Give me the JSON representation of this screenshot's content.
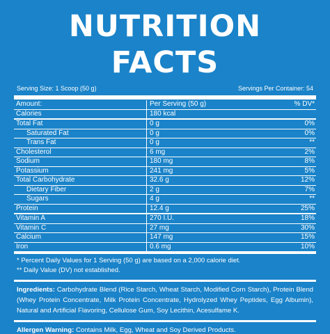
{
  "title": "NUTRITION FACTS",
  "serving_size": "Serving Size: 1 Scoop (50 g)",
  "servings_per_container": "Servings Per Container: 54",
  "header": {
    "name": "Amount:",
    "amount": "Per Serving (50 g)",
    "dv": "% DV*"
  },
  "rows": [
    {
      "name": "Calories",
      "amount": "180 kcal",
      "dv": ""
    },
    {
      "name": "Total Fat",
      "amount": "0 g",
      "dv": "0%"
    },
    {
      "name": "Saturated Fat",
      "amount": "0 g",
      "dv": "0%"
    },
    {
      "name": "Trans Fat",
      "amount": "0 g",
      "dv": "**"
    },
    {
      "name": "Cholesterol",
      "amount": "6 mg",
      "dv": "2%"
    },
    {
      "name": "Sodium",
      "amount": "180 mg",
      "dv": "8%"
    },
    {
      "name": "Potassium",
      "amount": "241 mg",
      "dv": "5%"
    },
    {
      "name": "Total Carbohydrate",
      "amount": "32.6 g",
      "dv": "12%"
    },
    {
      "name": "Dietary Fiber",
      "amount": "2 g",
      "dv": "7%"
    },
    {
      "name": "Sugars",
      "amount": "4 g",
      "dv": "**"
    },
    {
      "name": "Protein",
      "amount": "12.4 g",
      "dv": "25%"
    },
    {
      "name": "Vitamin A",
      "amount": "270 I.U.",
      "dv": "18%"
    },
    {
      "name": "Vitamin C",
      "amount": "27 mg",
      "dv": "30%"
    },
    {
      "name": "Calcium",
      "amount": "147 mg",
      "dv": "15%"
    },
    {
      "name": "Iron",
      "amount": "0.6 mg",
      "dv": "10%"
    }
  ],
  "footnote_1": "* Percent Daily Values for 1 Serving (50 g) are based on a 2,000 calorie diet.",
  "footnote_2": "** Daily Value (DV) not established.",
  "ingredients_label": "Ingredients:",
  "ingredients_text": "Carbohydrate Blend (Rice Starch, Wheat Starch, Modified Corn Starch), Protein Blend (Whey Protein Concentrate, Milk Protein Concentrate, Hydrolyzed Whey Peptides, Egg Albumin), Natural and Artificial Flavoring, Cellulose Gum, Soy Lecithin, Acesulfame K.",
  "allergen_label": "Allergen Warning:",
  "allergen_text": "Contains Milk, Egg, Wheat and Soy Derived Products."
}
